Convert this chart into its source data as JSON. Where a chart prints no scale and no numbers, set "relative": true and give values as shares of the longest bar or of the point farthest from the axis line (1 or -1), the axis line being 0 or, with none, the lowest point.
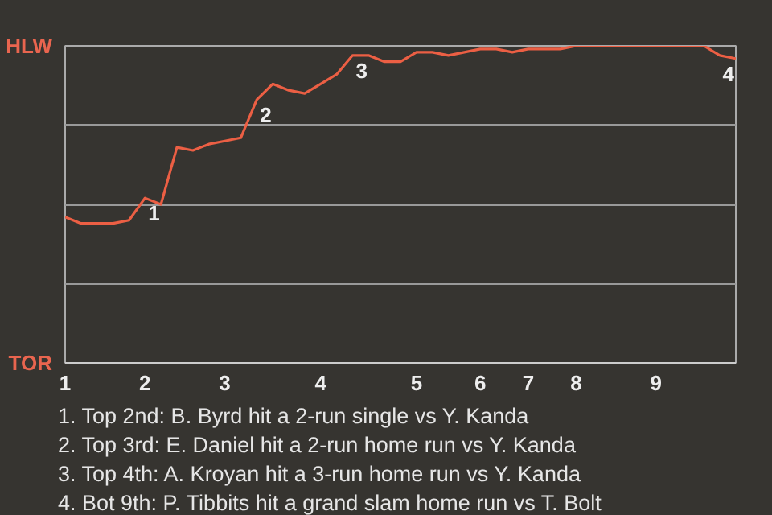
{
  "chart_data": {
    "type": "line",
    "relative": true,
    "categories": [
      "1",
      null,
      null,
      null,
      null,
      "2",
      null,
      null,
      null,
      null,
      "3",
      null,
      null,
      null,
      null,
      null,
      "4",
      null,
      null,
      null,
      null,
      null,
      "5",
      null,
      null,
      null,
      "6",
      null,
      null,
      "7",
      null,
      null,
      "8",
      null,
      null,
      null,
      null,
      "9",
      null,
      null,
      null,
      null,
      null
    ],
    "series": [
      {
        "color": "#ec5f44",
        "values": [
          0.46,
          0.44,
          0.44,
          0.44,
          0.45,
          0.52,
          0.5,
          0.68,
          0.67,
          0.69,
          0.7,
          0.71,
          0.83,
          0.88,
          0.86,
          0.85,
          0.88,
          0.91,
          0.97,
          0.97,
          0.95,
          0.95,
          0.98,
          0.98,
          0.97,
          0.98,
          0.99,
          0.99,
          0.98,
          0.99,
          0.99,
          0.99,
          1,
          1,
          1,
          1,
          1,
          1,
          1,
          1,
          1,
          0.97,
          0.96
        ]
      }
    ],
    "grid": "y",
    "marker": "none",
    "line_style": "solid",
    "annotations": [
      "HLW",
      "TOR",
      {
        "text": "1",
        "y": 0.52
      },
      {
        "text": "2",
        "y": 0.83
      },
      {
        "text": "3",
        "y": 0.97
      },
      {
        "text": "4",
        "y": 0.96
      },
      "1. Top 2nd: B. Byrd hit a 2-run single vs Y. Kanda",
      "2. Top 3rd: E. Daniel hit a 2-run home run vs Y. Kanda",
      "3. Top 4th: A. Kroyan hit a 3-run home run vs Y. Kanda",
      "4. Bot 9th: P. Tibbits hit a grand slam home run vs T. Bolt"
    ]
  }
}
